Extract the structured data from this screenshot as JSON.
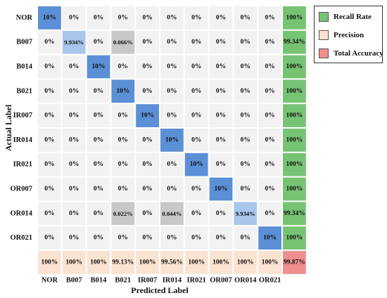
{
  "chart_data": {
    "type": "heatmap",
    "xlabel": "Predicted Label",
    "ylabel": "Actual Label",
    "classes": [
      "NOR",
      "B007",
      "B014",
      "B021",
      "IR007",
      "IR014",
      "IR021",
      "OR007",
      "OR014",
      "OR021"
    ],
    "matrix": [
      [
        "10%",
        "0%",
        "0%",
        "0%",
        "0%",
        "0%",
        "0%",
        "0%",
        "0%",
        "0%"
      ],
      [
        "0%",
        "9.934%",
        "0%",
        "0.066%",
        "0%",
        "0%",
        "0%",
        "0%",
        "0%",
        "0%"
      ],
      [
        "0%",
        "0%",
        "10%",
        "0%",
        "0%",
        "0%",
        "0%",
        "0%",
        "0%",
        "0%"
      ],
      [
        "0%",
        "0%",
        "0%",
        "10%",
        "0%",
        "0%",
        "0%",
        "0%",
        "0%",
        "0%"
      ],
      [
        "0%",
        "0%",
        "0%",
        "0%",
        "10%",
        "0%",
        "0%",
        "0%",
        "0%",
        "0%"
      ],
      [
        "0%",
        "0%",
        "0%",
        "0%",
        "0%",
        "10%",
        "0%",
        "0%",
        "0%",
        "0%"
      ],
      [
        "0%",
        "0%",
        "0%",
        "0%",
        "0%",
        "0%",
        "10%",
        "0%",
        "0%",
        "0%"
      ],
      [
        "0%",
        "0%",
        "0%",
        "0%",
        "0%",
        "0%",
        "0%",
        "10%",
        "0%",
        "0%"
      ],
      [
        "0%",
        "0%",
        "0%",
        "0.022%",
        "0%",
        "0.044%",
        "0%",
        "0%",
        "9.934%",
        "0%"
      ],
      [
        "0%",
        "0%",
        "0%",
        "0%",
        "0%",
        "0%",
        "0%",
        "0%",
        "0%",
        "10%"
      ]
    ],
    "recall": [
      "100%",
      "99.34%",
      "100%",
      "100%",
      "100%",
      "100%",
      "100%",
      "100%",
      "99.34%",
      "100%"
    ],
    "precision": [
      "100%",
      "100%",
      "100%",
      "99.13%",
      "100%",
      "99.56%",
      "100%",
      "100%",
      "100%",
      "100%"
    ],
    "total_accuracy": "99.87%",
    "colors": {
      "diagonal": "#5b8fd6",
      "diagonal_light": "#a9c6ec",
      "off_diagonal_nonzero": "#c8c8c8",
      "zero": "#f2f2f2",
      "recall": "#77c374",
      "precision": "#fbe3d2",
      "total_accuracy": "#ef8e8e",
      "grid": "#b5b5b5"
    },
    "legend": {
      "position": "top-right",
      "items": [
        {
          "label": "Recall Rate",
          "color": "#77c374"
        },
        {
          "label": "Precision",
          "color": "#fbe3d2"
        },
        {
          "label": "Total Accuracy",
          "color": "#ef8e8e"
        }
      ]
    }
  }
}
